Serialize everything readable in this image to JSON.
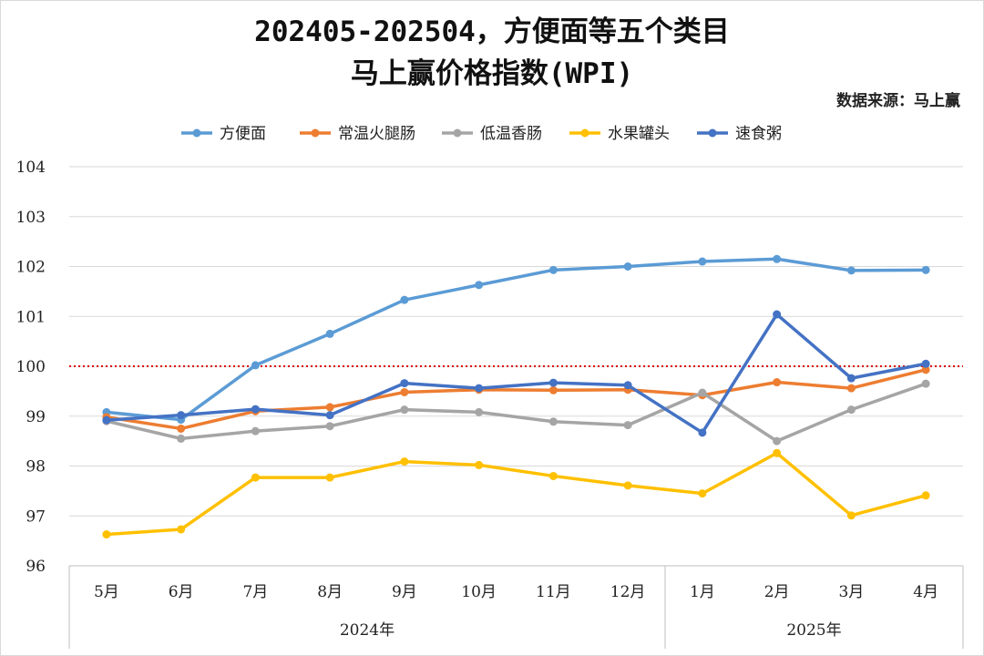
{
  "chart_data": {
    "type": "line",
    "title": "202405-202504，方便面等五个类目",
    "subtitle": "马上赢价格指数(WPI)",
    "source": "数据来源：马上赢",
    "categories": [
      "5月",
      "6月",
      "7月",
      "8月",
      "9月",
      "10月",
      "11月",
      "12月",
      "1月",
      "2月",
      "3月",
      "4月"
    ],
    "year_groups": [
      {
        "label": "2024年",
        "span": 8
      },
      {
        "label": "2025年",
        "span": 4
      }
    ],
    "ylim": [
      96,
      104
    ],
    "yticks": [
      96,
      97,
      98,
      99,
      100,
      101,
      102,
      103,
      104
    ],
    "reference_line": 100,
    "reference_color": "#e00000",
    "xlabel": "",
    "ylabel": "",
    "legend_position": "top",
    "series": [
      {
        "name": "方便面",
        "color": "#5b9bd5",
        "values": [
          99.08,
          98.93,
          100.02,
          100.65,
          101.33,
          101.63,
          101.93,
          102.0,
          102.1,
          102.15,
          101.92,
          101.93
        ]
      },
      {
        "name": "常温火腿肠",
        "color": "#ed7d31",
        "values": [
          98.98,
          98.75,
          99.1,
          99.18,
          99.48,
          99.53,
          99.52,
          99.53,
          99.42,
          99.68,
          99.56,
          99.93
        ]
      },
      {
        "name": "低温香肠",
        "color": "#a5a5a5",
        "values": [
          98.9,
          98.55,
          98.7,
          98.8,
          99.13,
          99.08,
          98.89,
          98.82,
          99.47,
          98.5,
          99.13,
          99.65
        ]
      },
      {
        "name": "水果罐头",
        "color": "#ffc000",
        "values": [
          96.63,
          96.73,
          97.77,
          97.77,
          98.09,
          98.02,
          97.8,
          97.61,
          97.45,
          98.26,
          97.01,
          97.41
        ]
      },
      {
        "name": "速食粥",
        "color": "#4472c4",
        "values": [
          98.92,
          99.02,
          99.14,
          99.02,
          99.66,
          99.56,
          99.67,
          99.62,
          98.67,
          101.04,
          99.76,
          100.05
        ]
      }
    ]
  }
}
